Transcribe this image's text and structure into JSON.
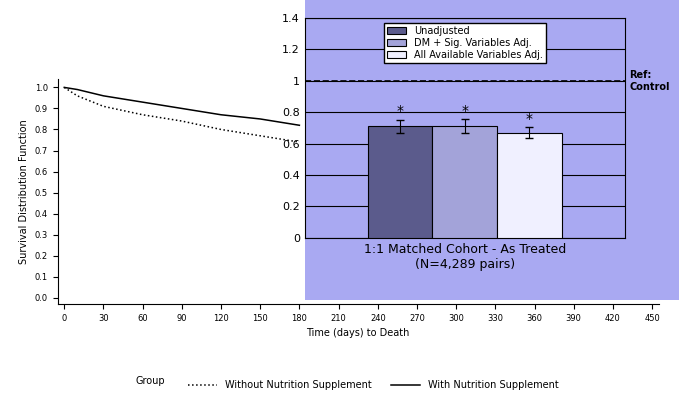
{
  "chart_data": [
    {
      "type": "line",
      "x_label": "Time (days) to Death",
      "y_label": "Survival Distribution Function",
      "x": [
        0,
        10,
        30,
        60,
        90,
        120,
        150,
        180
      ],
      "series": [
        {
          "name": "Without Nutrition Supplement",
          "color": "#000000",
          "line_style": "dotted",
          "values": [
            1.0,
            0.96,
            0.91,
            0.87,
            0.84,
            0.8,
            0.77,
            0.74
          ]
        },
        {
          "name": "With Nutrition Supplement",
          "color": "#000000",
          "line_style": "solid",
          "values": [
            1.0,
            0.99,
            0.96,
            0.93,
            0.9,
            0.87,
            0.85,
            0.82
          ]
        }
      ],
      "legend_title": "Group",
      "legend": "lower center",
      "xlim": [
        -5,
        455
      ],
      "xticks": [
        0,
        30,
        60,
        90,
        120,
        150,
        180,
        210,
        240,
        270,
        300,
        330,
        360,
        390,
        420,
        450
      ],
      "ylim": [
        -0.03,
        1.04
      ],
      "yticks": [
        {
          "value": 0,
          "label": "0.0"
        },
        0.1,
        0.2,
        0.3,
        0.4,
        0.5,
        0.6,
        0.7,
        0.8,
        0.9,
        {
          "value": 1,
          "label": "1.0"
        }
      ],
      "grid": false
    },
    {
      "type": "bar",
      "categories": [
        "1:1 Matched Cohort - As Treated\n(N=4,289 pairs)"
      ],
      "series": [
        {
          "name": "Unadjusted",
          "color": "#5b5b8c",
          "values": [
            0.71
          ],
          "errors": [
            0.04
          ],
          "annotation": "*"
        },
        {
          "name": "DM + Sig. Variables Adj.",
          "color": "#a3a3d9",
          "values": [
            0.71
          ],
          "errors": [
            0.045
          ],
          "annotation": "*"
        },
        {
          "name": "All Available Variables Adj.",
          "color": "#f0f0ff",
          "values": [
            0.67
          ],
          "errors": [
            0.035
          ],
          "annotation": "*"
        }
      ],
      "reference_line": {
        "value": 1,
        "label": "Ref: Control"
      },
      "legend": "upper center",
      "ylim": [
        0,
        1.4
      ],
      "yticks": [
        0,
        0.2,
        0.4,
        0.6,
        0.8,
        1,
        1.2,
        1.4
      ],
      "grid": true
    }
  ]
}
